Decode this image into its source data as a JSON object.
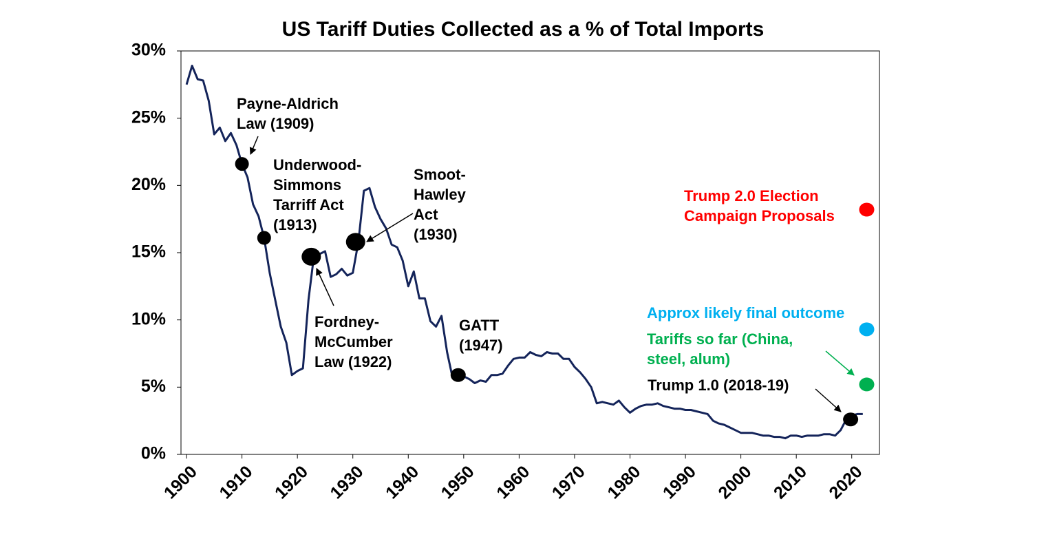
{
  "chart_data": {
    "type": "line",
    "title": "US Tariff Duties Collected as a % of Total Imports",
    "xlim": [
      1899,
      2025
    ],
    "xticks": [
      1900,
      1910,
      1920,
      1930,
      1940,
      1950,
      1960,
      1970,
      1980,
      1990,
      2000,
      2010,
      2020
    ],
    "ylim": [
      0,
      30
    ],
    "yticks": [
      {
        "value": 0,
        "label": "0%"
      },
      {
        "value": 5,
        "label": "5%"
      },
      {
        "value": 10,
        "label": "10%"
      },
      {
        "value": 15,
        "label": "15%"
      },
      {
        "value": 20,
        "label": "20%"
      },
      {
        "value": 25,
        "label": "25%"
      },
      {
        "value": 30,
        "label": "30%"
      }
    ],
    "grid": false,
    "series": [
      {
        "color": "#14245a",
        "x": [
          1900,
          1901,
          1902,
          1903,
          1904,
          1905,
          1906,
          1907,
          1908,
          1909,
          1910,
          1911,
          1912,
          1913,
          1914,
          1915,
          1916,
          1917,
          1918,
          1919,
          1920,
          1921,
          1922,
          1923,
          1924,
          1925,
          1926,
          1927,
          1928,
          1929,
          1930,
          1931,
          1932,
          1933,
          1934,
          1935,
          1936,
          1937,
          1938,
          1939,
          1940,
          1941,
          1942,
          1943,
          1944,
          1945,
          1946,
          1947,
          1948,
          1949,
          1950,
          1951,
          1952,
          1953,
          1954,
          1955,
          1956,
          1957,
          1958,
          1959,
          1960,
          1961,
          1962,
          1963,
          1964,
          1965,
          1966,
          1967,
          1968,
          1969,
          1970,
          1971,
          1972,
          1973,
          1974,
          1975,
          1976,
          1977,
          1978,
          1979,
          1980,
          1981,
          1982,
          1983,
          1984,
          1985,
          1986,
          1987,
          1988,
          1989,
          1990,
          1991,
          1992,
          1993,
          1994,
          1995,
          1996,
          1997,
          1998,
          1999,
          2000,
          2001,
          2002,
          2003,
          2004,
          2005,
          2006,
          2007,
          2008,
          2009,
          2010,
          2011,
          2012,
          2013,
          2014,
          2015,
          2016,
          2017,
          2018,
          2019,
          2020,
          2021,
          2022
        ],
        "values": [
          27.5,
          28.9,
          27.9,
          27.8,
          26.3,
          23.8,
          24.3,
          23.3,
          23.9,
          23.0,
          21.6,
          20.6,
          18.6,
          17.7,
          16.1,
          13.5,
          11.5,
          9.5,
          8.3,
          5.9,
          6.2,
          6.4,
          11.5,
          14.8,
          14.9,
          15.1,
          13.2,
          13.4,
          13.8,
          13.3,
          13.5,
          15.8,
          19.6,
          19.8,
          18.4,
          17.5,
          16.8,
          15.6,
          15.4,
          14.4,
          12.5,
          13.6,
          11.6,
          11.6,
          9.9,
          9.5,
          10.3,
          7.6,
          5.7,
          5.9,
          5.8,
          5.6,
          5.3,
          5.5,
          5.4,
          5.9,
          5.9,
          6.0,
          6.6,
          7.1,
          7.2,
          7.2,
          7.6,
          7.4,
          7.3,
          7.6,
          7.5,
          7.5,
          7.1,
          7.1,
          6.5,
          6.1,
          5.6,
          5.0,
          3.8,
          3.9,
          3.8,
          3.7,
          4.0,
          3.5,
          3.1,
          3.4,
          3.6,
          3.7,
          3.7,
          3.8,
          3.6,
          3.5,
          3.4,
          3.4,
          3.3,
          3.3,
          3.2,
          3.1,
          3.0,
          2.5,
          2.3,
          2.2,
          2.0,
          1.8,
          1.6,
          1.6,
          1.6,
          1.5,
          1.4,
          1.4,
          1.3,
          1.3,
          1.2,
          1.4,
          1.4,
          1.3,
          1.4,
          1.4,
          1.4,
          1.5,
          1.5,
          1.4,
          1.8,
          2.6,
          2.9,
          3.0,
          3.0
        ]
      }
    ],
    "points": [
      {
        "x": 1910,
        "y": 21.6,
        "color": "#000000"
      },
      {
        "x": 1914,
        "y": 16.1,
        "color": "#000000"
      },
      {
        "x": 1922.5,
        "y": 14.7,
        "color": "#000000"
      },
      {
        "x": 1930.5,
        "y": 15.8,
        "color": "#000000"
      },
      {
        "x": 1949,
        "y": 5.9,
        "color": "#000000"
      },
      {
        "x": 2019.8,
        "y": 2.6,
        "color": "#000000"
      },
      {
        "x": 2022.7,
        "y": 18.2,
        "color": "#ff0000"
      },
      {
        "x": 2022.7,
        "y": 9.3,
        "color": "#00b0f0"
      },
      {
        "x": 2022.7,
        "y": 5.2,
        "color": "#00b050"
      }
    ],
    "annotations": [
      {
        "lines": [
          "Payne-Aldrich",
          "Law (1909)"
        ],
        "color": "#000000"
      },
      {
        "lines": [
          "Underwood-",
          "Simmons",
          "Tarriff Act",
          "(1913)"
        ],
        "color": "#000000"
      },
      {
        "lines": [
          "Smoot-",
          "Hawley",
          "Act",
          "(1930)"
        ],
        "color": "#000000"
      },
      {
        "lines": [
          "Fordney-",
          "McCumber",
          "Law (1922)"
        ],
        "color": "#000000"
      },
      {
        "lines": [
          "GATT",
          "(1947)"
        ],
        "color": "#000000"
      },
      {
        "lines": [
          "Trump 2.0 Election",
          "Campaign Proposals"
        ],
        "color": "#ff0000"
      },
      {
        "lines": [
          "Approx likely final outcome"
        ],
        "color": "#00b0f0"
      },
      {
        "lines": [
          "Tariffs so far (China,",
          "steel, alum)"
        ],
        "color": "#00b050"
      },
      {
        "lines": [
          "Trump 1.0 (2018-19)"
        ],
        "color": "#000000"
      }
    ]
  }
}
